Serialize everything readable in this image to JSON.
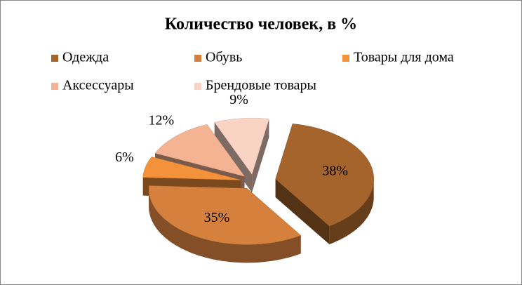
{
  "chart_data": {
    "type": "pie",
    "title": "Количество человек, в %",
    "categories": [
      "Одежда",
      "Обувь",
      "Товары для дома",
      "Аксессуары",
      "Брендовые товары"
    ],
    "values": [
      38,
      35,
      6,
      12,
      9
    ],
    "value_labels": [
      "38%",
      "35%",
      "6%",
      "12%",
      "9%"
    ],
    "colors": [
      "#a5642c",
      "#d5803d",
      "#f4923c",
      "#f4b494",
      "#f9d3c3"
    ],
    "legend": "top"
  }
}
